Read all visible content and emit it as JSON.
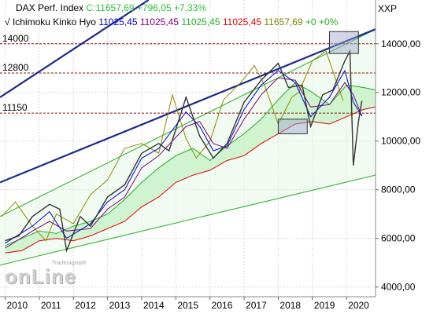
{
  "header": {
    "line1": [
      {
        "text": "DAX Perf. Index",
        "color": "#000000"
      },
      {
        "text": "C:11657,69",
        "color": "#2fbf3b"
      },
      {
        "text": "+796,05",
        "color": "#2fbf3b"
      },
      {
        "text": "+7,33%",
        "color": "#2fbf3b"
      }
    ],
    "line2": [
      {
        "text": "Ichimoku Kinko Hyo",
        "color": "#000000"
      },
      {
        "text": "11025,45",
        "color": "#0000cc"
      },
      {
        "text": "11025,45",
        "color": "#800080"
      },
      {
        "text": "11025,45",
        "color": "#22b022"
      },
      {
        "text": "11025,45",
        "color": "#e00000"
      },
      {
        "text": "11657,69",
        "color": "#808000"
      },
      {
        "text": "+0",
        "color": "#22b022"
      },
      {
        "text": "+0%",
        "color": "#22b022"
      }
    ],
    "right_label": "XXP"
  },
  "logo": {
    "sub": "Tradesignal®",
    "main": "onLine"
  },
  "chart_data": {
    "type": "line",
    "title": "DAX Perf. Index",
    "x_ticks": [
      "2010",
      "2011",
      "2012",
      "2013",
      "2014",
      "2015",
      "2016",
      "2017",
      "2018",
      "2019",
      "2020"
    ],
    "y_ticks": [
      "4000,00",
      "6000,00",
      "8000,00",
      "10000,00",
      "12000,00",
      "14000,00"
    ],
    "y_tick_values": [
      4000,
      6000,
      8000,
      10000,
      12000,
      14000
    ],
    "xlim": [
      2009.85,
      2020.85
    ],
    "ylim": [
      3600,
      15800
    ],
    "horizontal_levels": [
      {
        "label": "14000",
        "value": 14000
      },
      {
        "label": "12800",
        "value": 12800
      },
      {
        "label": "11150",
        "value": 11150
      }
    ],
    "series": [
      {
        "name": "DAX Perf. Index",
        "x": [
          2010.0,
          2010.4,
          2010.8,
          2011.3,
          2011.6,
          2011.8,
          2012.2,
          2012.5,
          2013.0,
          2013.5,
          2014.0,
          2014.5,
          2014.8,
          2015.3,
          2015.7,
          2016.1,
          2016.5,
          2017.0,
          2017.5,
          2018.0,
          2018.3,
          2018.7,
          2018.95,
          2019.3,
          2019.6,
          2019.95,
          2020.1,
          2020.2,
          2020.35,
          2020.45
        ],
        "y": [
          5900,
          6100,
          6900,
          7400,
          7200,
          5500,
          6900,
          6500,
          7700,
          8200,
          9500,
          9900,
          9600,
          11800,
          10200,
          9300,
          9900,
          11600,
          12500,
          13200,
          12200,
          12300,
          10600,
          11900,
          12100,
          13300,
          13700,
          9000,
          10800,
          11658
        ]
      },
      {
        "name": "Tenkan",
        "x": [
          2010.0,
          2010.8,
          2011.3,
          2011.8,
          2012.5,
          2013.0,
          2013.5,
          2014.0,
          2014.5,
          2015.3,
          2015.7,
          2016.1,
          2016.5,
          2017.0,
          2017.5,
          2018.0,
          2018.5,
          2018.95,
          2019.5,
          2019.95,
          2020.2,
          2020.45
        ],
        "y": [
          5800,
          6500,
          7100,
          6000,
          6600,
          7500,
          8000,
          9300,
          9700,
          11200,
          10600,
          9600,
          9800,
          11300,
          12300,
          12900,
          12400,
          11000,
          11800,
          12900,
          11600,
          11025
        ]
      },
      {
        "name": "Kijun",
        "x": [
          2010.0,
          2010.8,
          2011.3,
          2011.8,
          2012.5,
          2013.0,
          2013.5,
          2014.0,
          2014.5,
          2015.3,
          2015.7,
          2016.1,
          2016.5,
          2017.0,
          2017.5,
          2018.0,
          2018.5,
          2018.95,
          2019.5,
          2019.95,
          2020.2,
          2020.45
        ],
        "y": [
          5600,
          6300,
          6700,
          6300,
          6400,
          7200,
          7700,
          8900,
          9400,
          10600,
          10800,
          9900,
          9700,
          10900,
          11900,
          12600,
          12500,
          11400,
          11500,
          12400,
          11900,
          11025
        ]
      },
      {
        "name": "Chikou",
        "x": [
          2009.9,
          2010.3,
          2010.8,
          2011.2,
          2011.5,
          2012.0,
          2012.5,
          2013.0,
          2013.5,
          2014.0,
          2014.5,
          2014.9,
          2015.3,
          2015.6,
          2016.0,
          2016.4,
          2016.9,
          2017.3,
          2017.6,
          2018.0,
          2018.4,
          2018.6,
          2019.0,
          2019.4,
          2019.9
        ],
        "y": [
          6900,
          7500,
          6500,
          5900,
          7000,
          6600,
          7800,
          8400,
          9700,
          9900,
          9500,
          11900,
          10100,
          9300,
          10000,
          11700,
          12400,
          13100,
          12300,
          10700,
          11800,
          12000,
          13300,
          13700,
          11658
        ]
      },
      {
        "name": "Senkou A",
        "x": [
          2010.0,
          2010.5,
          2011.0,
          2011.5,
          2012.0,
          2012.5,
          2013.0,
          2013.5,
          2014.0,
          2014.5,
          2015.0,
          2015.5,
          2016.0,
          2016.5,
          2017.0,
          2017.5,
          2018.0,
          2018.5,
          2019.0,
          2019.5,
          2020.0,
          2020.5,
          2020.85
        ],
        "y": [
          5700,
          6000,
          6300,
          6200,
          6500,
          6700,
          7000,
          7600,
          8300,
          8900,
          9400,
          9700,
          9200,
          9800,
          10300,
          10900,
          11700,
          12400,
          12000,
          11500,
          12300,
          12200,
          12100
        ]
      },
      {
        "name": "Senkou B",
        "x": [
          2010.0,
          2010.5,
          2011.0,
          2011.5,
          2012.0,
          2012.5,
          2013.0,
          2013.5,
          2014.0,
          2014.5,
          2015.0,
          2015.5,
          2016.0,
          2016.5,
          2017.0,
          2017.5,
          2018.0,
          2018.5,
          2019.0,
          2019.5,
          2020.0,
          2020.5,
          2020.85
        ],
        "y": [
          5400,
          5500,
          5900,
          6000,
          5900,
          6100,
          6400,
          6700,
          7300,
          7700,
          8300,
          8600,
          8800,
          9200,
          9400,
          9900,
          10300,
          10700,
          10800,
          10700,
          11000,
          11300,
          11400
        ]
      }
    ]
  }
}
